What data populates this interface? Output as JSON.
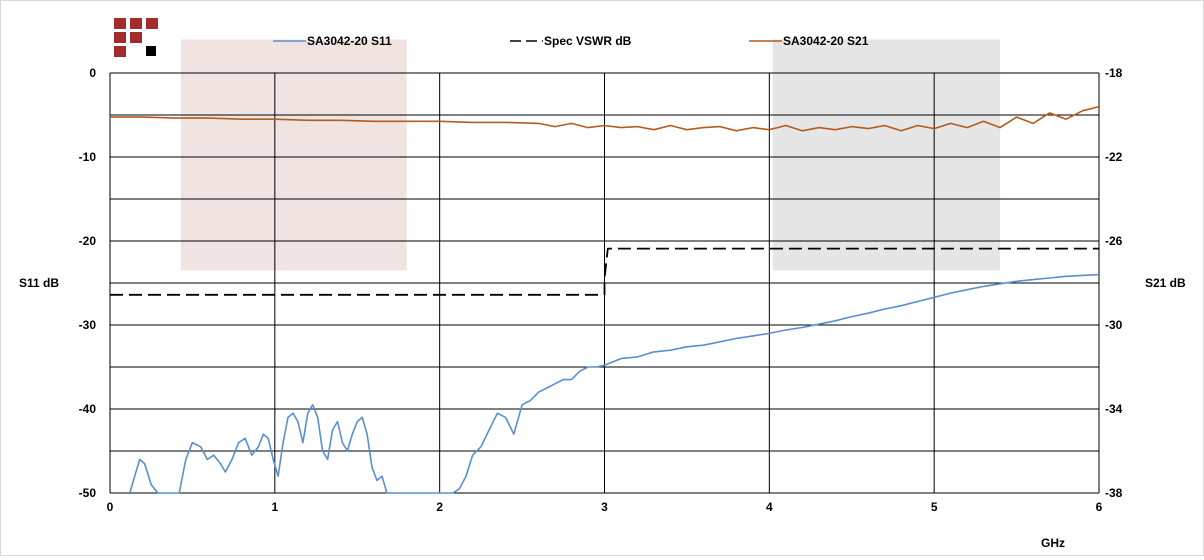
{
  "logo": {
    "name": "grid-logo",
    "colors": {
      "red": "#a52a2a",
      "black": "#000000"
    }
  },
  "chart_data": {
    "type": "line",
    "xlabel": "GHz",
    "ylabel_left": "S11 dB",
    "ylabel_right": "S21 dB",
    "xlim": [
      0,
      6
    ],
    "ylim_left": [
      -50,
      0
    ],
    "ylim_right": [
      -38,
      -18
    ],
    "x_ticks": [
      "0",
      "1",
      "2",
      "3",
      "4",
      "5",
      "6"
    ],
    "y_ticks_left": [
      "0",
      "-10",
      "-20",
      "-30",
      "-40",
      "-50"
    ],
    "y_ticks_right": [
      "-18",
      "-22",
      "-26",
      "-30",
      "-34",
      "-38"
    ],
    "grid": true,
    "legend_position": "top",
    "bands": [
      {
        "x_start": 0.43,
        "x_end": 1.8,
        "y_top": 4,
        "y_bottom": -23.5,
        "color": "#f2e3e3"
      },
      {
        "x_start": 4.02,
        "x_end": 5.4,
        "y_top": 4,
        "y_bottom": -23.5,
        "color": "#e6e6e6"
      }
    ],
    "series": [
      {
        "name": "SA3042-20 S11",
        "axis": "left",
        "color": "#5b8fd0",
        "x": [
          0.12,
          0.15,
          0.18,
          0.21,
          0.25,
          0.29,
          0.32,
          0.36,
          0.39,
          0.42,
          0.46,
          0.5,
          0.55,
          0.59,
          0.63,
          0.67,
          0.7,
          0.74,
          0.78,
          0.82,
          0.86,
          0.9,
          0.93,
          0.96,
          0.99,
          1.02,
          1.05,
          1.08,
          1.11,
          1.14,
          1.17,
          1.2,
          1.23,
          1.26,
          1.29,
          1.32,
          1.35,
          1.38,
          1.41,
          1.44,
          1.47,
          1.5,
          1.53,
          1.56,
          1.59,
          1.62,
          1.65,
          1.68,
          1.72,
          1.76,
          1.8,
          1.84,
          2.08,
          2.12,
          2.16,
          2.2,
          2.25,
          2.3,
          2.35,
          2.4,
          2.45,
          2.5,
          2.55,
          2.6,
          2.65,
          2.7,
          2.75,
          2.8,
          2.85,
          2.9,
          2.95,
          3.0,
          3.1,
          3.2,
          3.3,
          3.4,
          3.5,
          3.6,
          3.7,
          3.8,
          3.9,
          4.0,
          4.1,
          4.2,
          4.3,
          4.4,
          4.5,
          4.6,
          4.7,
          4.8,
          4.9,
          5.0,
          5.1,
          5.2,
          5.3,
          5.4,
          5.5,
          5.6,
          5.7,
          5.8,
          5.9,
          6.0
        ],
        "y": [
          -50,
          -48,
          -46,
          -46.5,
          -49,
          -50,
          -50,
          -50,
          -50,
          -50,
          -46,
          -44,
          -44.5,
          -46,
          -45.5,
          -46.5,
          -47.5,
          -46,
          -44,
          -43.5,
          -45.5,
          -44.5,
          -43,
          -43.5,
          -46,
          -48,
          -44,
          -41,
          -40.5,
          -41.5,
          -44,
          -40.5,
          -39.5,
          -41,
          -45,
          -46,
          -42.5,
          -41.5,
          -44,
          -45,
          -43,
          -41.5,
          -41,
          -43,
          -47,
          -48.5,
          -48,
          -50,
          -50,
          -50,
          -50,
          -50,
          -50,
          -49.5,
          -48,
          -45.5,
          -44.5,
          -42.5,
          -40.5,
          -41,
          -43,
          -39.5,
          -39,
          -38,
          -37.5,
          -37,
          -36.5,
          -36.5,
          -35.5,
          -35,
          -35,
          -34.8,
          -34,
          -33.8,
          -33.2,
          -33,
          -32.6,
          -32.4,
          -32,
          -31.6,
          -31.3,
          -31,
          -30.6,
          -30.3,
          -29.9,
          -29.5,
          -29,
          -28.6,
          -28.1,
          -27.7,
          -27.2,
          -26.7,
          -26.2,
          -25.8,
          -25.4,
          -25.1,
          -24.8,
          -24.6,
          -24.4,
          -24.2,
          -24.1,
          -24
        ]
      },
      {
        "name": "Spec VSWR dB",
        "axis": "left",
        "color": "#000000",
        "x": [
          0,
          3.0,
          3.0,
          3.02,
          6.0
        ],
        "y": [
          -26.4,
          -26.4,
          -24.5,
          -20.9,
          -20.9
        ]
      },
      {
        "name": "SA3042-20 S21",
        "axis": "right",
        "color": "#b35c1e",
        "x": [
          0.0,
          0.2,
          0.4,
          0.6,
          0.8,
          1.0,
          1.2,
          1.4,
          1.6,
          1.8,
          2.0,
          2.2,
          2.4,
          2.6,
          2.7,
          2.8,
          2.9,
          3.0,
          3.1,
          3.2,
          3.3,
          3.4,
          3.5,
          3.6,
          3.7,
          3.8,
          3.9,
          4.0,
          4.1,
          4.2,
          4.3,
          4.4,
          4.5,
          4.6,
          4.7,
          4.8,
          4.9,
          5.0,
          5.1,
          5.2,
          5.3,
          5.4,
          5.5,
          5.6,
          5.7,
          5.8,
          5.9,
          6.0
        ],
        "y": [
          -20.1,
          -20.1,
          -20.15,
          -20.15,
          -20.2,
          -20.2,
          -20.25,
          -20.25,
          -20.3,
          -20.3,
          -20.3,
          -20.35,
          -20.35,
          -20.4,
          -20.55,
          -20.4,
          -20.6,
          -20.5,
          -20.6,
          -20.55,
          -20.7,
          -20.5,
          -20.7,
          -20.6,
          -20.55,
          -20.75,
          -20.6,
          -20.7,
          -20.5,
          -20.75,
          -20.6,
          -20.7,
          -20.55,
          -20.65,
          -20.5,
          -20.75,
          -20.5,
          -20.65,
          -20.4,
          -20.6,
          -20.3,
          -20.6,
          -20.1,
          -20.4,
          -19.9,
          -20.2,
          -19.8,
          -19.6
        ]
      }
    ]
  }
}
